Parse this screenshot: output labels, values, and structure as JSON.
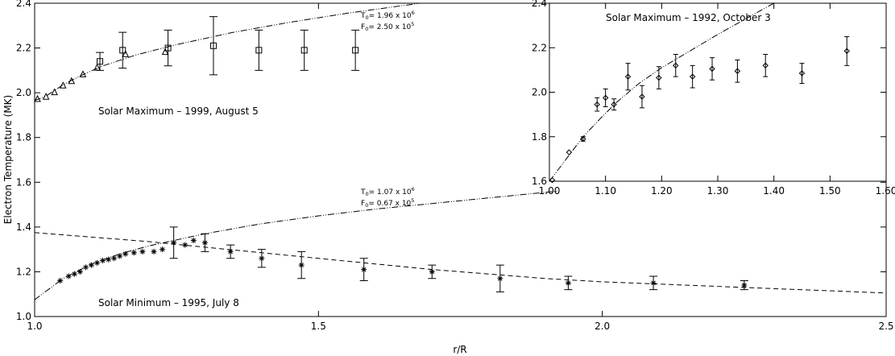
{
  "chart_data": [
    {
      "id": "main",
      "type": "scatter",
      "xlabel": "r/R",
      "ylabel": "Electron Temperature (MK)",
      "xlim": [
        1.0,
        2.5
      ],
      "ylim": [
        1.0,
        2.4
      ],
      "x_ticks": [
        1.0,
        1.5,
        2.0,
        2.5
      ],
      "x_tick_labels": [
        "1.0",
        "1.5",
        "2.0",
        "2.5"
      ],
      "y_ticks": [
        1.0,
        1.2,
        1.4,
        1.6,
        1.8,
        2.0,
        2.2,
        2.4
      ],
      "y_tick_labels": [
        "1.0",
        "1.2",
        "1.4",
        "1.6",
        "1.8",
        "2.0",
        "2.2",
        "2.4"
      ],
      "annotations": [
        {
          "text": "Solar Maximum – 1999, August 5",
          "x": 1.11,
          "y": 1.86
        },
        {
          "text": "Solar Minimum – 1995, July 8",
          "x": 1.11,
          "y": 1.05
        }
      ],
      "fit_labels": [
        {
          "T_text": "T",
          "T_sub": "0",
          "T_value": "= 1.96 x 10",
          "T_exp": "6",
          "F_text": "F",
          "F_sub": "0",
          "F_value": "= 2.50 x 10",
          "F_exp": "5",
          "x": 1.572,
          "y": 2.375
        },
        {
          "T_text": "T",
          "T_sub": "0",
          "T_value": "= 1.07 x 10",
          "T_exp": "6",
          "F_text": "F",
          "F_sub": "0",
          "F_value": "= 0.67 x 10",
          "F_exp": "5",
          "x": 1.572,
          "y": 1.575
        }
      ],
      "series": [
        {
          "marker": "square",
          "points": [
            {
              "x": 1.115,
              "y": 2.14,
              "err": 0.04
            },
            {
              "x": 1.155,
              "y": 2.19,
              "err": 0.08
            },
            {
              "x": 1.235,
              "y": 2.2,
              "err": 0.08
            },
            {
              "x": 1.315,
              "y": 2.21,
              "err": 0.13
            },
            {
              "x": 1.395,
              "y": 2.19,
              "err": 0.09
            },
            {
              "x": 1.475,
              "y": 2.19,
              "err": 0.09
            },
            {
              "x": 1.565,
              "y": 2.19,
              "err": 0.09
            }
          ]
        },
        {
          "marker": "triangle",
          "points": [
            {
              "x": 1.005,
              "y": 1.97
            },
            {
              "x": 1.02,
              "y": 1.98
            },
            {
              "x": 1.035,
              "y": 2.0
            },
            {
              "x": 1.05,
              "y": 2.03
            },
            {
              "x": 1.065,
              "y": 2.05
            },
            {
              "x": 1.085,
              "y": 2.08
            },
            {
              "x": 1.11,
              "y": 2.11
            },
            {
              "x": 1.16,
              "y": 2.17
            },
            {
              "x": 1.23,
              "y": 2.18
            }
          ]
        },
        {
          "marker": "asterisk",
          "points": [
            {
              "x": 1.045,
              "y": 1.16
            },
            {
              "x": 1.06,
              "y": 1.18
            },
            {
              "x": 1.07,
              "y": 1.19
            },
            {
              "x": 1.08,
              "y": 1.2
            },
            {
              "x": 1.09,
              "y": 1.22
            },
            {
              "x": 1.1,
              "y": 1.23
            },
            {
              "x": 1.11,
              "y": 1.24
            },
            {
              "x": 1.12,
              "y": 1.25
            },
            {
              "x": 1.13,
              "y": 1.255
            },
            {
              "x": 1.14,
              "y": 1.26
            },
            {
              "x": 1.15,
              "y": 1.27
            },
            {
              "x": 1.16,
              "y": 1.28
            },
            {
              "x": 1.175,
              "y": 1.285
            },
            {
              "x": 1.19,
              "y": 1.29
            },
            {
              "x": 1.21,
              "y": 1.29
            },
            {
              "x": 1.225,
              "y": 1.3
            },
            {
              "x": 1.245,
              "y": 1.33,
              "err": 0.07
            },
            {
              "x": 1.265,
              "y": 1.32
            },
            {
              "x": 1.28,
              "y": 1.34
            },
            {
              "x": 1.3,
              "y": 1.33,
              "err": 0.04
            },
            {
              "x": 1.345,
              "y": 1.29,
              "err": 0.03
            },
            {
              "x": 1.4,
              "y": 1.26,
              "err": 0.04
            },
            {
              "x": 1.47,
              "y": 1.23,
              "err": 0.06
            },
            {
              "x": 1.58,
              "y": 1.21,
              "err": 0.05
            },
            {
              "x": 1.7,
              "y": 1.2,
              "err": 0.03
            },
            {
              "x": 1.82,
              "y": 1.17,
              "err": 0.06
            },
            {
              "x": 1.94,
              "y": 1.15,
              "err": 0.03
            },
            {
              "x": 2.09,
              "y": 1.15,
              "err": 0.03
            },
            {
              "x": 2.25,
              "y": 1.14,
              "err": 0.02
            }
          ]
        }
      ],
      "curves": [
        {
          "style": "dash-dot-dot",
          "points": [
            [
              1.0,
              1.965
            ],
            [
              1.02,
              1.985
            ],
            [
              1.05,
              2.035
            ],
            [
              1.08,
              2.075
            ],
            [
              1.12,
              2.12
            ],
            [
              1.18,
              2.17
            ],
            [
              1.25,
              2.215
            ],
            [
              1.35,
              2.27
            ],
            [
              1.45,
              2.315
            ],
            [
              1.55,
              2.355
            ],
            [
              1.65,
              2.39
            ],
            [
              1.68,
              2.4
            ]
          ]
        },
        {
          "style": "dash-dot-dot",
          "points": [
            [
              1.0,
              1.075
            ],
            [
              1.05,
              1.17
            ],
            [
              1.1,
              1.235
            ],
            [
              1.15,
              1.28
            ],
            [
              1.2,
              1.315
            ],
            [
              1.3,
              1.37
            ],
            [
              1.4,
              1.415
            ],
            [
              1.5,
              1.45
            ],
            [
              1.6,
              1.48
            ],
            [
              1.7,
              1.505
            ],
            [
              1.8,
              1.53
            ],
            [
              1.9,
              1.555
            ],
            [
              1.92,
              1.56
            ]
          ]
        },
        {
          "style": "dashed",
          "points": [
            [
              1.0,
              1.375
            ],
            [
              1.1,
              1.355
            ],
            [
              1.2,
              1.335
            ],
            [
              1.3,
              1.31
            ],
            [
              1.4,
              1.285
            ],
            [
              1.5,
              1.26
            ],
            [
              1.6,
              1.235
            ],
            [
              1.7,
              1.21
            ],
            [
              1.8,
              1.19
            ],
            [
              1.9,
              1.17
            ],
            [
              2.0,
              1.155
            ],
            [
              2.1,
              1.145
            ],
            [
              2.2,
              1.135
            ],
            [
              2.3,
              1.125
            ],
            [
              2.4,
              1.115
            ],
            [
              2.5,
              1.105
            ]
          ]
        }
      ]
    },
    {
      "id": "inset",
      "type": "scatter",
      "title": "Solar Maximum – 1992, October 3",
      "xlim": [
        1.0,
        1.6
      ],
      "ylim": [
        1.6,
        2.4
      ],
      "x_ticks": [
        1.0,
        1.1,
        1.2,
        1.3,
        1.4,
        1.5,
        1.6
      ],
      "x_tick_labels": [
        "1.00",
        "1.10",
        "1.20",
        "1.30",
        "1.40",
        "1.50",
        "1.60"
      ],
      "y_ticks": [
        1.6,
        1.8,
        2.0,
        2.2,
        2.4
      ],
      "y_tick_labels": [
        "1.6",
        "1.8",
        "2.0",
        "2.2",
        "2.4"
      ],
      "series": [
        {
          "marker": "diamond",
          "points": [
            {
              "x": 1.005,
              "y": 1.605
            },
            {
              "x": 1.035,
              "y": 1.73
            },
            {
              "x": 1.06,
              "y": 1.79,
              "err": 0.01
            },
            {
              "x": 1.085,
              "y": 1.945,
              "err": 0.03
            },
            {
              "x": 1.1,
              "y": 1.975,
              "err": 0.04
            },
            {
              "x": 1.115,
              "y": 1.945,
              "err": 0.025
            },
            {
              "x": 1.14,
              "y": 2.07,
              "err": 0.06
            },
            {
              "x": 1.165,
              "y": 1.98,
              "err": 0.05
            },
            {
              "x": 1.195,
              "y": 2.065,
              "err": 0.05
            },
            {
              "x": 1.225,
              "y": 2.12,
              "err": 0.05
            },
            {
              "x": 1.255,
              "y": 2.07,
              "err": 0.05
            },
            {
              "x": 1.29,
              "y": 2.105,
              "err": 0.05
            },
            {
              "x": 1.335,
              "y": 2.095,
              "err": 0.05
            },
            {
              "x": 1.385,
              "y": 2.12,
              "err": 0.05
            },
            {
              "x": 1.45,
              "y": 2.085,
              "err": 0.045
            },
            {
              "x": 1.53,
              "y": 2.185,
              "err": 0.065
            }
          ]
        }
      ],
      "curves": [
        {
          "style": "dash-dot-dot",
          "points": [
            [
              1.0,
              1.6
            ],
            [
              1.03,
              1.7
            ],
            [
              1.06,
              1.8
            ],
            [
              1.09,
              1.88
            ],
            [
              1.12,
              1.955
            ],
            [
              1.16,
              2.04
            ],
            [
              1.2,
              2.11
            ],
            [
              1.25,
              2.185
            ],
            [
              1.3,
              2.26
            ],
            [
              1.35,
              2.33
            ],
            [
              1.4,
              2.4
            ]
          ]
        }
      ]
    }
  ]
}
